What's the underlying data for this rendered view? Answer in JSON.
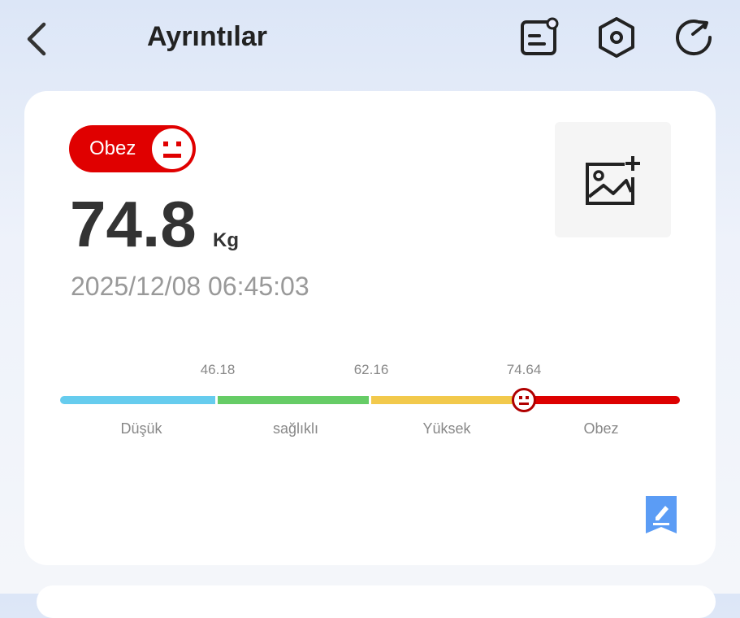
{
  "header": {
    "title": "Ayrıntılar",
    "icons": [
      "back-icon",
      "note-icon",
      "settings-icon",
      "refresh-icon"
    ]
  },
  "card": {
    "status_badge": "Obez",
    "weight": "74.8",
    "unit": "Kg",
    "datetime": "2025/12/08 06:45:03",
    "scale": {
      "thresholds": [
        "46.18",
        "62.16",
        "74.64"
      ],
      "categories": [
        "Düşük",
        "sağlıklı",
        "Yüksek",
        "Obez"
      ],
      "colors": [
        "#66ccee",
        "#66cc66",
        "#f2c94c",
        "#dd0000"
      ],
      "marker_value": 74.8
    }
  }
}
